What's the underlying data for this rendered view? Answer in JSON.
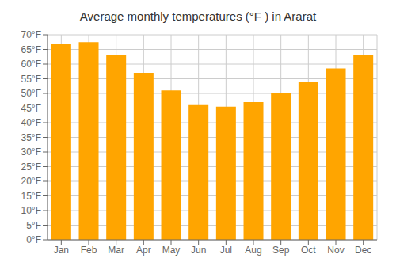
{
  "chart_data": {
    "type": "bar",
    "title": "Average monthly temperatures (°F ) in Ararat",
    "categories": [
      "Jan",
      "Feb",
      "Mar",
      "Apr",
      "May",
      "Jun",
      "Jul",
      "Aug",
      "Sep",
      "Oct",
      "Nov",
      "Dec"
    ],
    "values": [
      67,
      67.5,
      63,
      57,
      51,
      46,
      45.5,
      47,
      50,
      54,
      58.5,
      63
    ],
    "color": "#FFA500",
    "ylim": [
      0,
      70
    ],
    "yticks": [
      {
        "value": 0,
        "label": "0°F"
      },
      {
        "value": 5,
        "label": "5°F"
      },
      {
        "value": 10,
        "label": "10°F"
      },
      {
        "value": 15,
        "label": "15°F"
      },
      {
        "value": 20,
        "label": "20°F"
      },
      {
        "value": 25,
        "label": "25°F"
      },
      {
        "value": 30,
        "label": "30°F"
      },
      {
        "value": 35,
        "label": "35°F"
      },
      {
        "value": 40,
        "label": "40°F"
      },
      {
        "value": 45,
        "label": "45°F"
      },
      {
        "value": 50,
        "label": "50°F"
      },
      {
        "value": 55,
        "label": "55°F"
      },
      {
        "value": 60,
        "label": "60°F"
      },
      {
        "value": 65,
        "label": "65°F"
      },
      {
        "value": 70,
        "label": "70°F"
      }
    ],
    "grid": true
  }
}
